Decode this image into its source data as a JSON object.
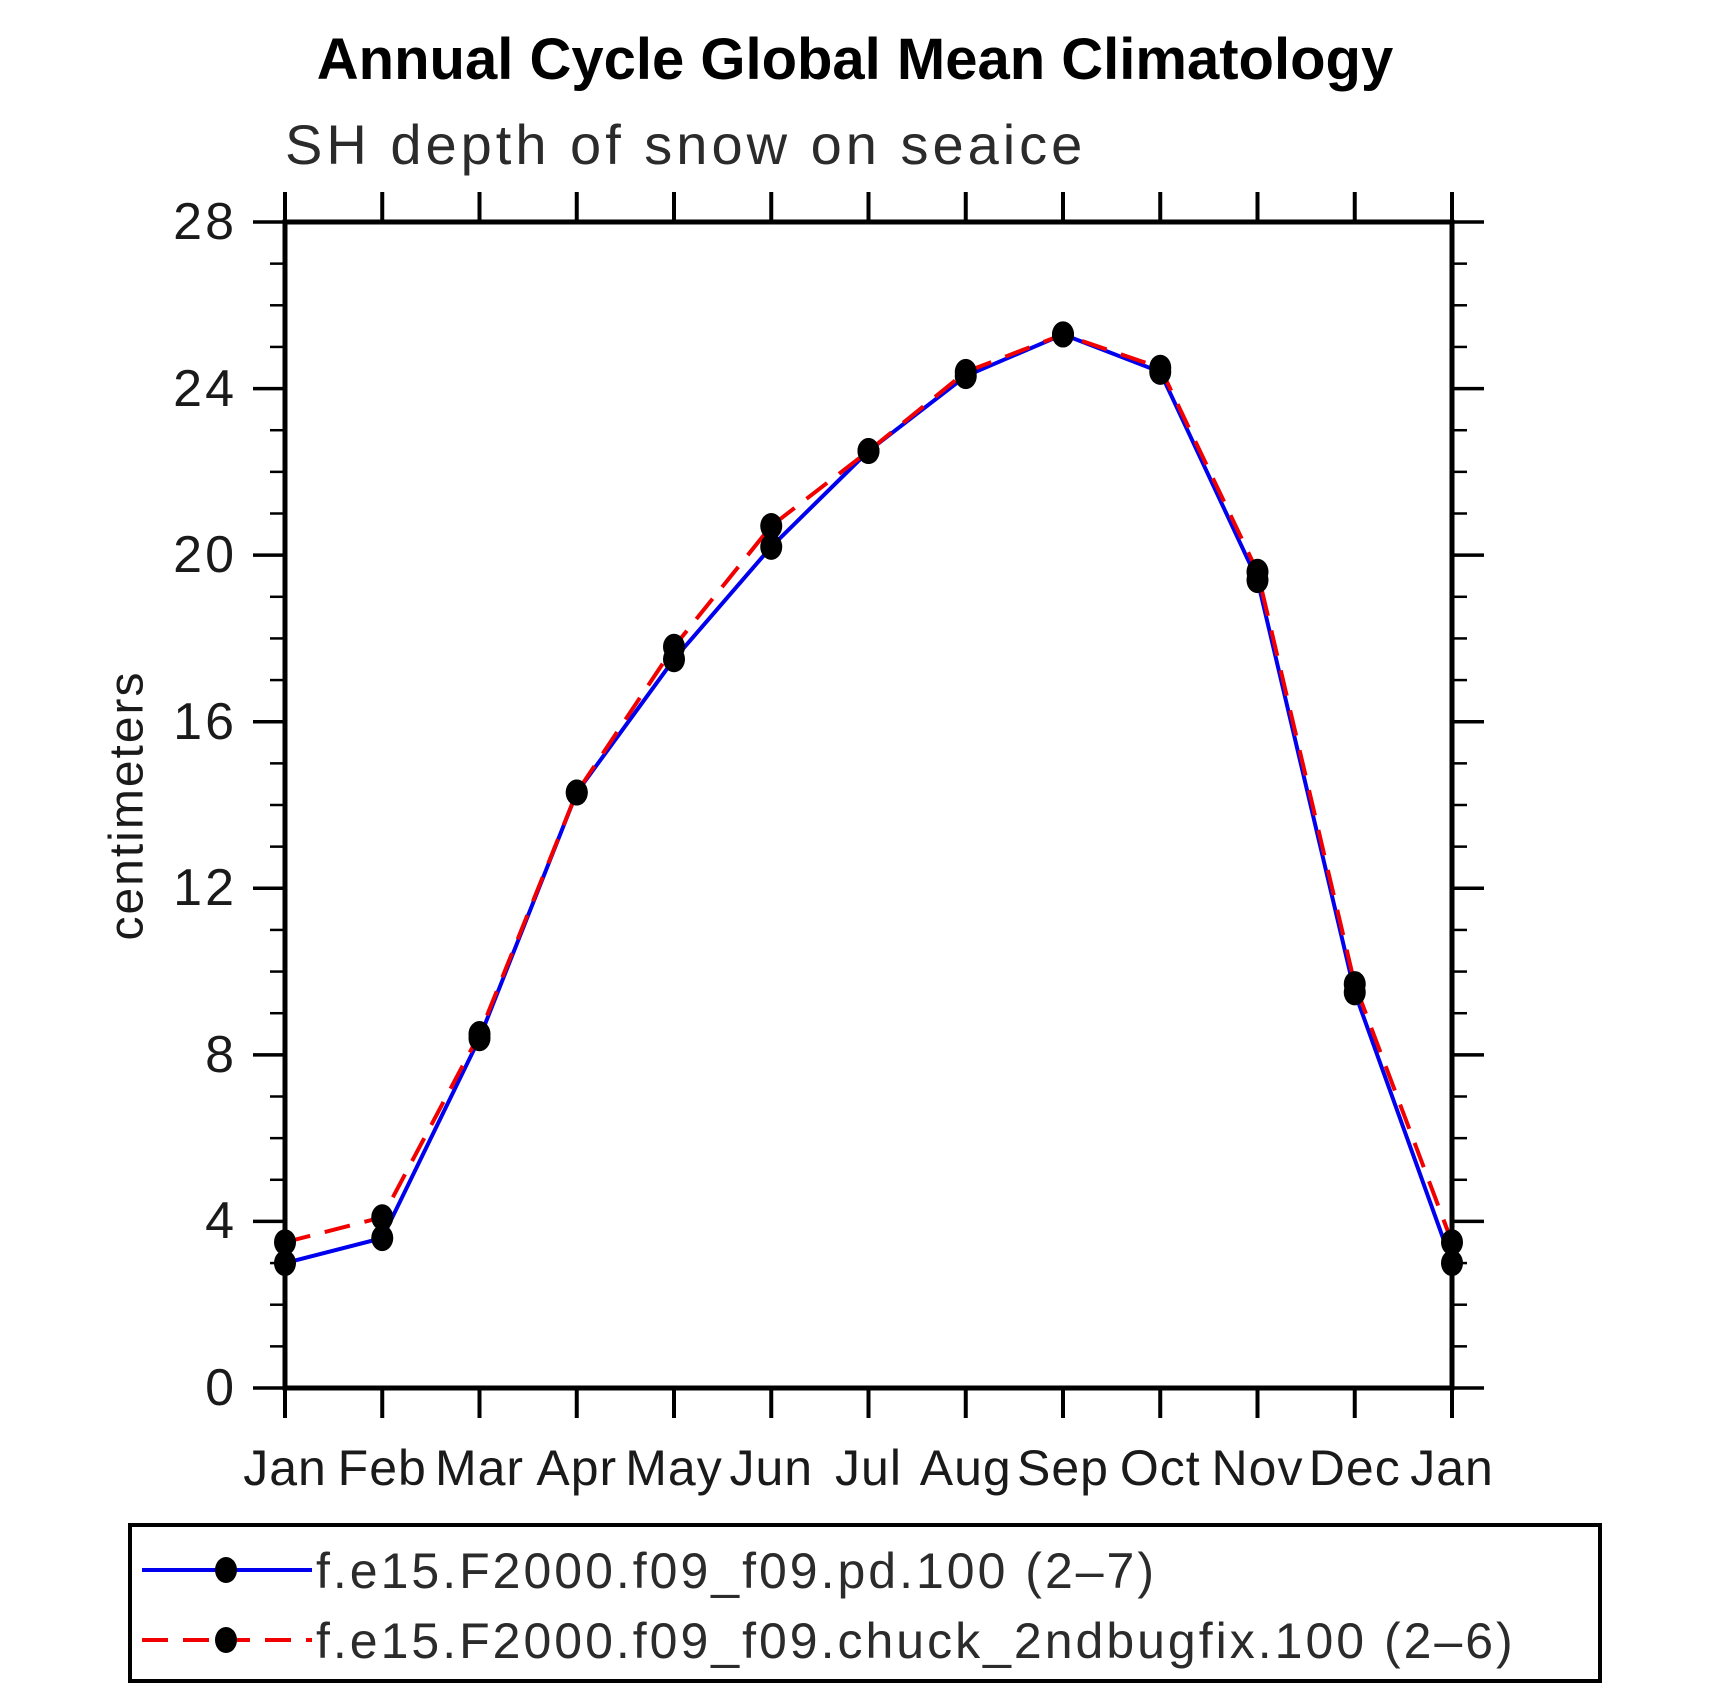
{
  "title": "Annual Cycle Global Mean Climatology",
  "subtitle": "SH depth of snow on seaice",
  "ylabel": "centimeters",
  "chart_data": {
    "type": "line",
    "categories": [
      "Jan",
      "Feb",
      "Mar",
      "Apr",
      "May",
      "Jun",
      "Jul",
      "Aug",
      "Sep",
      "Oct",
      "Nov",
      "Dec",
      "Jan"
    ],
    "xlabel": "",
    "ylabel": "centimeters",
    "ylim": [
      0,
      28
    ],
    "yticks": [
      0,
      4,
      8,
      12,
      16,
      20,
      24,
      28
    ],
    "ytick_step": 4,
    "yminor_step": 1,
    "grid": false,
    "legend_position": "bottom",
    "axis_color": "#000000",
    "marker_color": "#000000",
    "series": [
      {
        "name": "f.e15.F2000.f09_f09.pd.100 (2–7)",
        "color": "#0000ee",
        "style": "solid",
        "marker": "circle",
        "values": [
          3.0,
          3.6,
          8.4,
          14.3,
          17.5,
          20.2,
          22.5,
          24.3,
          25.3,
          24.4,
          19.4,
          9.5,
          3.0
        ]
      },
      {
        "name": "f.e15.F2000.f09_f09.chuck_2ndbugfix.100 (2–6)",
        "color": "#f20000",
        "style": "dashed",
        "marker": "circle",
        "values": [
          3.5,
          4.1,
          8.5,
          14.3,
          17.8,
          20.7,
          22.5,
          24.4,
          25.3,
          24.5,
          19.6,
          9.7,
          3.5
        ]
      }
    ]
  }
}
